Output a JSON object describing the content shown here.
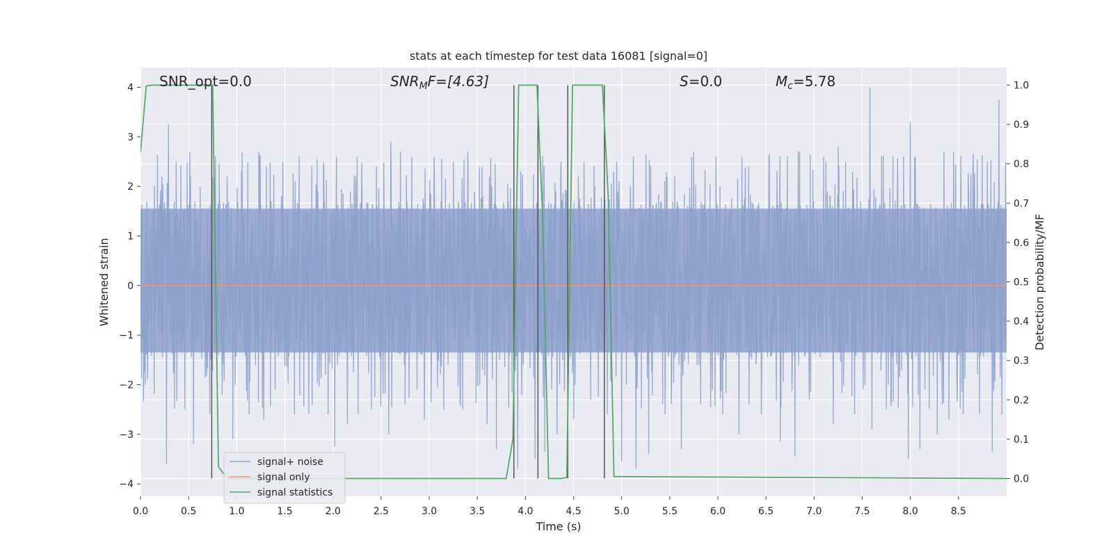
{
  "chart_data": {
    "type": "line",
    "title": "stats at each timestep for test data 16081 [signal=0]",
    "xlabel": "Time (s)",
    "ylabel": "Whitened strain",
    "ylabel_right": "Detection probability/MF",
    "xlim": [
      0.0,
      9.0
    ],
    "ylim": [
      -4.25,
      4.4
    ],
    "ylim_right": [
      -0.045,
      1.045
    ],
    "xticks": [
      "0.0",
      "0.5",
      "1.0",
      "1.5",
      "2.0",
      "2.5",
      "3.0",
      "3.5",
      "4.0",
      "4.5",
      "5.0",
      "5.5",
      "6.0",
      "6.5",
      "7.0",
      "7.5",
      "8.0",
      "8.5"
    ],
    "yticks": [
      "4",
      "3",
      "2",
      "1",
      "0",
      "−1",
      "−2",
      "−3",
      "−4"
    ],
    "yticks_right": [
      "1.0",
      "0.9",
      "0.8",
      "0.7",
      "0.6",
      "0.5",
      "0.4",
      "0.3",
      "0.2",
      "0.1",
      "0.0"
    ],
    "grid": true,
    "legend_position": "lower-left",
    "annotations": {
      "snr_opt": "SNR_opt=0.0",
      "snr_mf_main": "SNR",
      "snr_mf_sub": "M",
      "snr_mf_rest": "F=[4.63]",
      "s_main": "S",
      "s_rest": "=0.0",
      "mc_main": "M",
      "mc_sub": "c",
      "mc_rest": "=5.78"
    },
    "series": [
      {
        "name": "signal+ noise",
        "color": "#8da0cb",
        "axis": "left",
        "note": "dense whitened noise, approx. uniform band -1.5..1.7 with spikes up to 4.0 and down to -3.9",
        "spikes_up": [
          [
            0.05,
            2.4
          ],
          [
            0.22,
            2.2
          ],
          [
            0.29,
            3.25
          ],
          [
            0.37,
            2.5
          ],
          [
            0.52,
            2.2
          ],
          [
            0.62,
            2.0
          ],
          [
            0.78,
            2.6
          ],
          [
            0.9,
            2.2
          ],
          [
            1.05,
            2.3
          ],
          [
            1.23,
            2.7
          ],
          [
            1.31,
            2.4
          ],
          [
            1.48,
            2.5
          ],
          [
            1.6,
            2.2
          ],
          [
            1.75,
            2.6
          ],
          [
            1.9,
            2.4
          ],
          [
            2.02,
            2.4
          ],
          [
            2.25,
            2.6
          ],
          [
            2.45,
            2.4
          ],
          [
            2.6,
            2.9
          ],
          [
            2.7,
            2.7
          ],
          [
            2.82,
            2.6
          ],
          [
            3.05,
            2.6
          ],
          [
            3.25,
            2.5
          ],
          [
            3.4,
            2.7
          ],
          [
            3.55,
            2.4
          ],
          [
            3.65,
            2.0
          ],
          [
            3.95,
            2.3
          ],
          [
            4.18,
            2.6
          ],
          [
            4.37,
            2.5
          ],
          [
            4.55,
            2.2
          ],
          [
            4.72,
            2.0
          ],
          [
            4.95,
            2.5
          ],
          [
            5.12,
            2.6
          ],
          [
            5.3,
            2.4
          ],
          [
            5.55,
            2.2
          ],
          [
            5.75,
            2.7
          ],
          [
            5.98,
            2.6
          ],
          [
            6.05,
            2.2
          ],
          [
            6.25,
            2.6
          ],
          [
            6.32,
            2.4
          ],
          [
            6.53,
            2.6
          ],
          [
            6.72,
            2.6
          ],
          [
            6.85,
            2.7
          ],
          [
            6.95,
            3.25
          ],
          [
            7.1,
            2.6
          ],
          [
            7.25,
            2.8
          ],
          [
            7.4,
            2.3
          ],
          [
            7.58,
            4.0
          ],
          [
            7.7,
            2.6
          ],
          [
            7.82,
            2.6
          ],
          [
            7.93,
            2.6
          ],
          [
            8.0,
            3.3
          ],
          [
            8.1,
            2.3
          ],
          [
            8.28,
            2.5
          ],
          [
            8.35,
            2.7
          ],
          [
            8.45,
            2.7
          ],
          [
            8.65,
            2.4
          ],
          [
            8.8,
            2.5
          ],
          [
            8.92,
            3.75
          ]
        ],
        "spikes_down": [
          [
            0.05,
            -2.0
          ],
          [
            0.27,
            -3.6
          ],
          [
            0.46,
            -2.5
          ],
          [
            0.55,
            -3.2
          ],
          [
            0.72,
            -2.6
          ],
          [
            0.85,
            -2.2
          ],
          [
            0.96,
            -3.1
          ],
          [
            1.13,
            -2.6
          ],
          [
            1.28,
            -2.7
          ],
          [
            1.4,
            -2.1
          ],
          [
            1.6,
            -2.6
          ],
          [
            1.75,
            -2.6
          ],
          [
            1.95,
            -2.6
          ],
          [
            2.02,
            -3.25
          ],
          [
            2.15,
            -2.8
          ],
          [
            2.26,
            -2.6
          ],
          [
            2.4,
            -2.5
          ],
          [
            2.58,
            -3.0
          ],
          [
            2.75,
            -2.4
          ],
          [
            2.95,
            -2.7
          ],
          [
            3.15,
            -2.5
          ],
          [
            3.35,
            -2.5
          ],
          [
            3.6,
            -2.8
          ],
          [
            3.7,
            -3.3
          ],
          [
            3.92,
            -3.7
          ],
          [
            4.1,
            -3.5
          ],
          [
            4.2,
            -3.35
          ],
          [
            4.33,
            -3.0
          ],
          [
            4.5,
            -2.7
          ],
          [
            4.68,
            -2.3
          ],
          [
            4.85,
            -2.6
          ],
          [
            5.0,
            -3.55
          ],
          [
            5.15,
            -3.7
          ],
          [
            5.28,
            -3.4
          ],
          [
            5.45,
            -2.6
          ],
          [
            5.62,
            -3.3
          ],
          [
            5.82,
            -2.4
          ],
          [
            6.05,
            -2.6
          ],
          [
            6.22,
            -3.0
          ],
          [
            6.45,
            -2.6
          ],
          [
            6.65,
            -3.15
          ],
          [
            6.8,
            -3.45
          ],
          [
            6.95,
            -2.3
          ],
          [
            7.2,
            -2.8
          ],
          [
            7.42,
            -2.6
          ],
          [
            7.6,
            -2.9
          ],
          [
            7.75,
            -2.5
          ],
          [
            7.98,
            -3.5
          ],
          [
            8.1,
            -3.3
          ],
          [
            8.28,
            -3.0
          ],
          [
            8.4,
            -2.7
          ],
          [
            8.55,
            -2.6
          ],
          [
            8.72,
            -2.6
          ],
          [
            8.85,
            -3.35
          ],
          [
            8.95,
            -2.6
          ]
        ]
      },
      {
        "name": "signal only",
        "color": "#e5967a",
        "axis": "left",
        "x": [
          0.0,
          9.0
        ],
        "y": [
          0.0,
          0.0
        ]
      },
      {
        "name": "signal statistics",
        "color": "#55a868",
        "axis": "right",
        "x": [
          0.0,
          0.06,
          0.12,
          0.75,
          0.81,
          0.87,
          0.93,
          3.8,
          3.87,
          3.93,
          4.12,
          4.18,
          4.24,
          4.37,
          4.43,
          4.49,
          4.8,
          4.86,
          4.92,
          9.0
        ],
        "y": [
          0.83,
          0.998,
          1.0,
          1.0,
          0.03,
          0.01,
          0.0,
          0.0,
          0.1,
          1.0,
          1.0,
          0.66,
          0.0,
          0.0,
          0.003,
          1.0,
          1.0,
          0.72,
          0.005,
          0.0
        ]
      }
    ],
    "vertical_lines": [
      0.74,
      3.88,
      4.13,
      4.44,
      4.82
    ]
  }
}
